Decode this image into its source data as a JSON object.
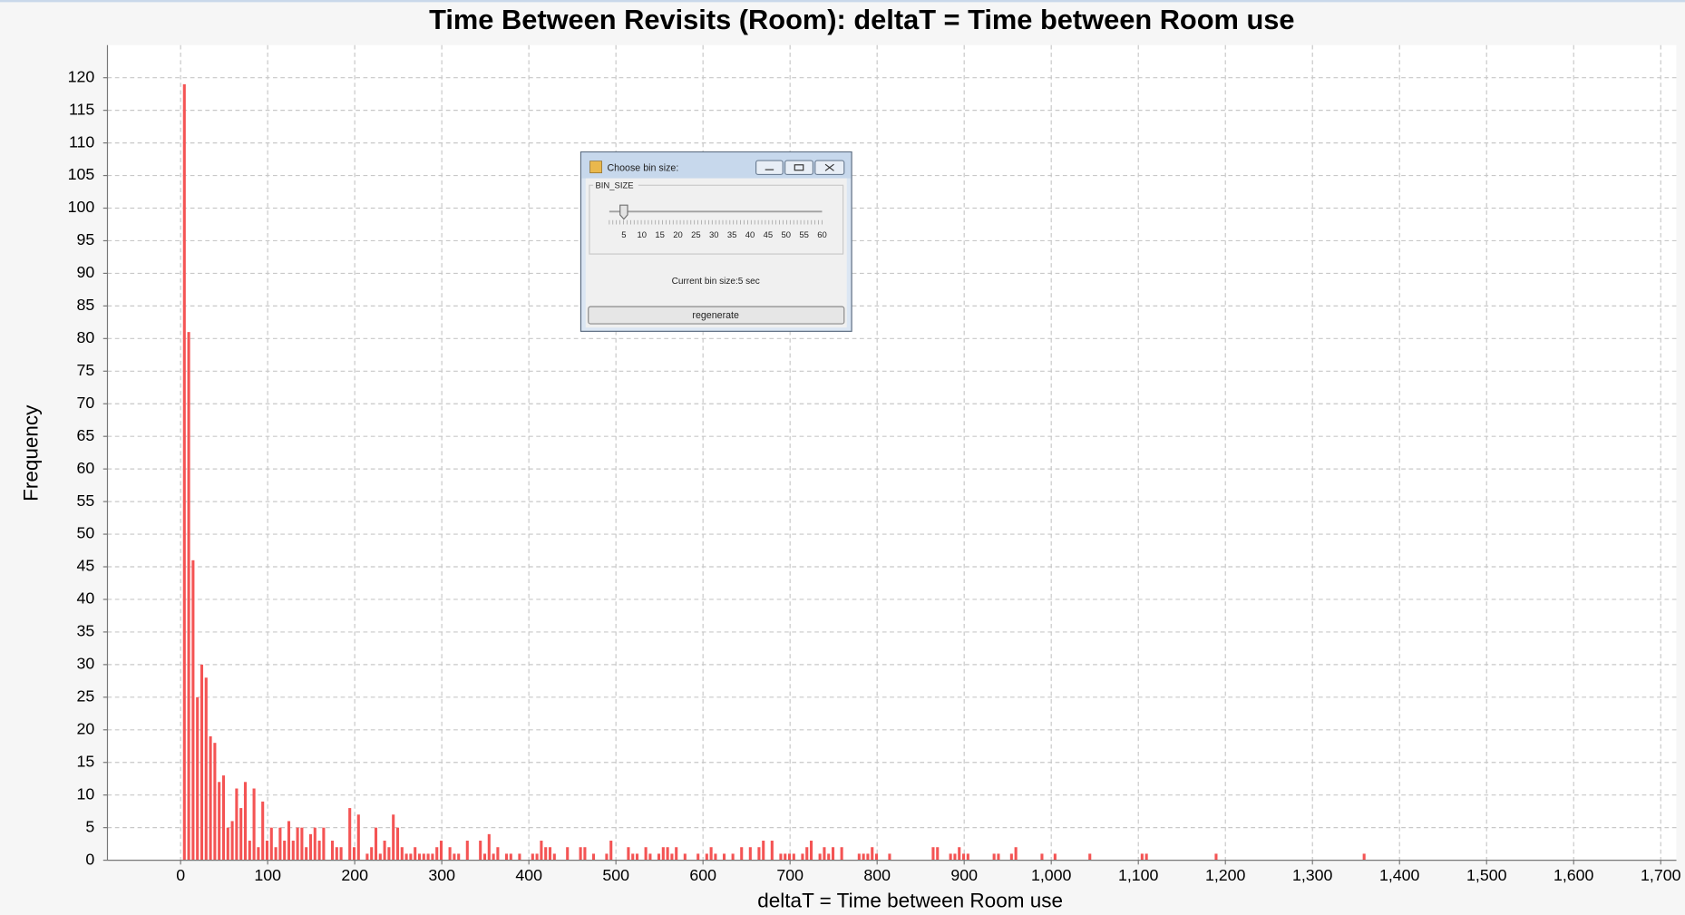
{
  "chart_data": {
    "type": "bar",
    "title": "Time Between Revisits (Room): deltaT = Time between Room use",
    "xlabel": "deltaT = Time between Room use",
    "ylabel": "Frequency",
    "color": "#f45454",
    "grid": true,
    "xlim": [
      -84,
      1718
    ],
    "ylim": [
      0,
      125
    ],
    "xticks": [
      0,
      100,
      200,
      300,
      400,
      500,
      600,
      700,
      800,
      900,
      {
        "value": 1000,
        "label": "1,000"
      },
      {
        "value": 1100,
        "label": "1,100"
      },
      {
        "value": 1200,
        "label": "1,200"
      },
      {
        "value": 1300,
        "label": "1,300"
      },
      {
        "value": 1400,
        "label": "1,400"
      },
      {
        "value": 1500,
        "label": "1,500"
      },
      {
        "value": 1600,
        "label": "1,600"
      },
      {
        "value": 1700,
        "label": "1,700"
      }
    ],
    "yticks": [
      0,
      5,
      10,
      15,
      20,
      25,
      30,
      35,
      40,
      45,
      50,
      55,
      60,
      65,
      70,
      75,
      80,
      85,
      90,
      95,
      100,
      105,
      110,
      115,
      120
    ],
    "x": [
      0,
      5,
      10,
      15,
      20,
      25,
      30,
      35,
      40,
      45,
      50,
      55,
      60,
      65,
      70,
      75,
      80,
      85,
      90,
      95,
      100,
      105,
      110,
      115,
      120,
      125,
      130,
      135,
      140,
      145,
      150,
      155,
      160,
      170,
      175,
      180,
      190,
      195,
      200,
      210,
      215,
      220,
      225,
      230,
      235,
      240,
      245,
      250,
      255,
      260,
      265,
      270,
      275,
      280,
      285,
      290,
      295,
      305,
      310,
      315,
      325,
      340,
      345,
      350,
      355,
      360,
      370,
      375,
      385,
      400,
      405,
      410,
      415,
      420,
      425,
      440,
      455,
      460,
      470,
      485,
      490,
      510,
      515,
      520,
      530,
      535,
      545,
      550,
      555,
      560,
      565,
      575,
      590,
      600,
      605,
      610,
      620,
      630,
      640,
      650,
      660,
      665,
      675,
      685,
      690,
      695,
      700,
      710,
      715,
      720,
      730,
      735,
      740,
      745,
      755,
      775,
      780,
      785,
      790,
      795,
      810,
      860,
      865,
      880,
      885,
      890,
      895,
      900,
      930,
      935,
      950,
      955,
      985,
      1000,
      1040,
      1100,
      1105,
      1185,
      1355
    ],
    "values": [
      119,
      81,
      46,
      25,
      30,
      28,
      19,
      18,
      12,
      13,
      5,
      6,
      11,
      8,
      12,
      3,
      11,
      2,
      9,
      3,
      5,
      2,
      5,
      3,
      6,
      3,
      5,
      5,
      2,
      4,
      5,
      3,
      5,
      3,
      2,
      2,
      8,
      2,
      7,
      1,
      2,
      5,
      1,
      3,
      2,
      7,
      5,
      2,
      1,
      1,
      2,
      1,
      1,
      1,
      1,
      2,
      3,
      2,
      1,
      1,
      3,
      3,
      1,
      4,
      1,
      2,
      1,
      1,
      1,
      1,
      1,
      3,
      2,
      2,
      1,
      2,
      2,
      2,
      1,
      1,
      3,
      2,
      1,
      1,
      2,
      1,
      1,
      2,
      2,
      1,
      2,
      1,
      1,
      1,
      2,
      1,
      1,
      1,
      2,
      2,
      2,
      3,
      3,
      1,
      1,
      1,
      1,
      1,
      2,
      3,
      1,
      2,
      1,
      2,
      2,
      1,
      1,
      1,
      2,
      1,
      1,
      2,
      2,
      1,
      1,
      2,
      1,
      1,
      1,
      1,
      1,
      2,
      1,
      1,
      1,
      1,
      1,
      1,
      1
    ]
  },
  "dialog": {
    "title": "Choose bin size:",
    "group": "BIN_SIZE",
    "slider_labels": [
      5,
      10,
      15,
      20,
      25,
      30,
      35,
      40,
      45,
      50,
      55,
      60
    ],
    "status": "Current bin size:5 sec",
    "button": "regenerate"
  }
}
